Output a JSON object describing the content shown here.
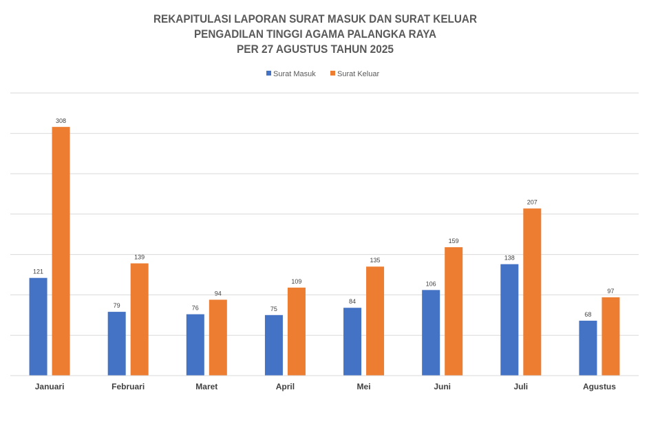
{
  "chart_data": {
    "type": "bar",
    "title": [
      "REKAPITULASI LAPORAN SURAT MASUK DAN SURAT KELUAR",
      "PENGADILAN TINGGI AGAMA PALANGKA RAYA",
      "PER 27 AGUSTUS TAHUN 2025"
    ],
    "categories": [
      "Januari",
      "Februari",
      "Maret",
      "April",
      "Mei",
      "Juni",
      "Juli",
      "Agustus"
    ],
    "series": [
      {
        "name": "Surat Masuk",
        "color": "#4472C4",
        "values": [
          121,
          79,
          76,
          75,
          84,
          106,
          138,
          68
        ]
      },
      {
        "name": "Surat Keluar",
        "color": "#ED7D31",
        "values": [
          308,
          139,
          94,
          109,
          135,
          159,
          207,
          97
        ]
      }
    ],
    "ylim": [
      0,
      350
    ],
    "grid": true,
    "legend": "top-center",
    "data_labels": true
  }
}
